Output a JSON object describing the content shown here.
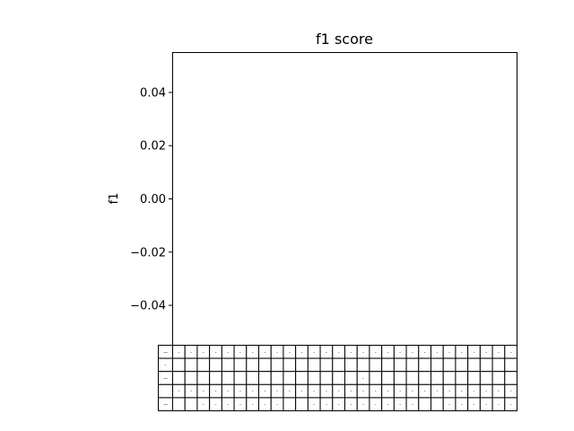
{
  "chart_data": {
    "type": "table",
    "title": "f1 score",
    "xlabel": "",
    "ylabel": "f1",
    "ylim": [
      -0.055,
      0.055
    ],
    "yticks": [
      -0.04,
      -0.02,
      0.0,
      0.02,
      0.04
    ],
    "ytick_labels": [
      "−0.04",
      "−0.02",
      "0.00",
      "0.02",
      "0.04"
    ],
    "grid": false,
    "legend": "none",
    "series": [],
    "table": {
      "rows": 5,
      "data_columns": 28,
      "has_row_label_column": true,
      "cells": [
        [
          "—",
          "-",
          "-",
          "-",
          "-",
          "-",
          "-",
          "-",
          "-",
          "-",
          "-",
          "-",
          "-",
          "-",
          "-",
          "-",
          "-",
          "-",
          "-",
          "-",
          "-",
          "-",
          "-",
          "-",
          "-",
          "-",
          "-",
          "-",
          "-"
        ],
        [
          "-",
          "",
          "",
          "",
          "",
          "",
          "",
          "",
          "",
          "",
          "",
          "",
          "",
          "",
          "",
          "",
          "",
          "",
          "",
          "",
          "",
          "",
          "",
          "",
          "",
          "",
          "",
          "",
          ""
        ],
        [
          "—",
          "",
          "",
          "",
          "",
          "",
          "",
          "",
          "",
          "",
          "",
          "",
          "",
          "",
          "",
          "",
          "-",
          "",
          "",
          "",
          "",
          "",
          "",
          "",
          "",
          "",
          "",
          "",
          ""
        ],
        [
          "",
          "-",
          "-",
          "-",
          "-",
          "-",
          "-",
          "-",
          "-",
          "-",
          "-",
          "-",
          "-",
          "-",
          "-",
          "-",
          "-",
          "-",
          "-",
          "-",
          "-",
          "-",
          "-",
          "-",
          "-",
          "-",
          "-",
          "-",
          "-"
        ],
        [
          "—",
          "",
          "",
          "-",
          "-",
          "-",
          "-",
          "-",
          "-",
          "-",
          "",
          "",
          "-",
          "-",
          "-",
          "-",
          "-",
          "-",
          "-",
          "-",
          "-",
          "",
          "",
          "-",
          "-",
          "-",
          "-",
          "-",
          "-"
        ]
      ]
    }
  }
}
